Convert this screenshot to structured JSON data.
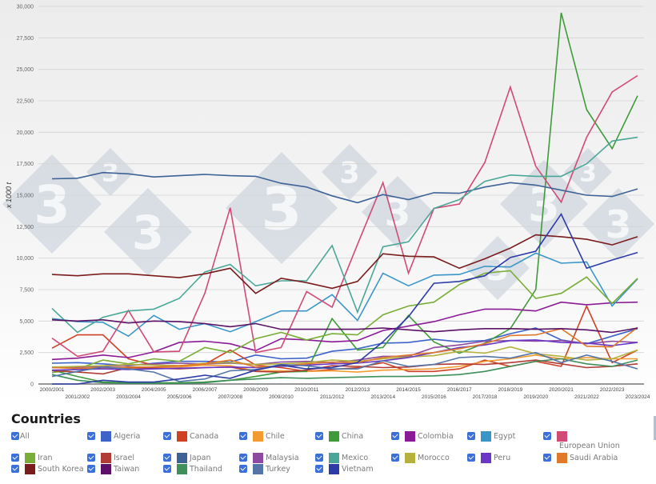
{
  "chart_data": {
    "type": "line",
    "title": "",
    "xlabel": "",
    "ylabel": "x 1000 t",
    "ylim": [
      0,
      30000
    ],
    "yticks": [
      0,
      2500,
      5000,
      7500,
      10000,
      12500,
      15000,
      17500,
      20000,
      22500,
      25000,
      27500,
      30000
    ],
    "ytick_labels": [
      "0",
      "2,500",
      "5,000",
      "7,500",
      "10,000",
      "12,500",
      "15,000",
      "17,500",
      "20,000",
      "22,500",
      "25,000",
      "27,500",
      "30,000"
    ],
    "grid": true,
    "legend_position": "bottom",
    "categories": [
      "2000/2001",
      "2001/2002",
      "2002/2003",
      "2003/2004",
      "2004/2005",
      "2005/2006",
      "2006/2007",
      "2007/2008",
      "2008/2009",
      "2009/2010",
      "2010/2011",
      "2011/2012",
      "2012/2013",
      "2013/2014",
      "2014/2015",
      "2015/2016",
      "2016/2017",
      "2017/2018",
      "2018/2019",
      "2019/2020",
      "2020/2021",
      "2021/2022",
      "2022/2023",
      "2023/2024"
    ],
    "series": [
      {
        "name": "Algeria",
        "color": "#3d63c9",
        "values": [
          1650,
          1700,
          1600,
          1450,
          1650,
          1800,
          1800,
          1750,
          2300,
          2000,
          2050,
          2600,
          2800,
          3250,
          3300,
          3550,
          3350,
          3450,
          4000,
          4450,
          3500,
          3200,
          3800,
          4400
        ]
      },
      {
        "name": "Canada",
        "color": "#cf4124",
        "values": [
          2850,
          3900,
          3900,
          2000,
          1500,
          1450,
          1550,
          2700,
          1500,
          1300,
          1000,
          1150,
          1300,
          1700,
          1000,
          1000,
          1200,
          1900,
          1400,
          1800,
          1400,
          6200,
          1700,
          2700
        ]
      },
      {
        "name": "Chile",
        "color": "#f39a30",
        "values": [
          1300,
          1250,
          1200,
          1250,
          1300,
          1350,
          1500,
          1450,
          1050,
          1050,
          1000,
          1050,
          950,
          1100,
          1150,
          1200,
          1400,
          1800,
          2000,
          2300,
          2000,
          2100,
          2000,
          2000
        ]
      },
      {
        "name": "China",
        "color": "#3f9b3a",
        "values": [
          1100,
          600,
          150,
          100,
          100,
          100,
          150,
          300,
          600,
          950,
          1000,
          5200,
          2700,
          2900,
          5450,
          3350,
          2450,
          3250,
          4400,
          7500,
          29500,
          21800,
          18700,
          22900
        ]
      },
      {
        "name": "Colombia",
        "color": "#8a1a95",
        "values": [
          1950,
          2050,
          2300,
          2100,
          2550,
          3300,
          3400,
          3200,
          2650,
          3600,
          3500,
          3350,
          3450,
          4250,
          4600,
          4950,
          5500,
          5950,
          5950,
          5800,
          6500,
          6300,
          6450,
          6500
        ]
      },
      {
        "name": "Egypt",
        "color": "#3a96c8",
        "values": [
          5200,
          4950,
          4900,
          3800,
          5450,
          4350,
          4800,
          4150,
          4950,
          5800,
          5800,
          7100,
          5050,
          8800,
          7800,
          8650,
          8700,
          9350,
          9300,
          10400,
          9600,
          9700,
          6200,
          8350
        ]
      },
      {
        "name": "European Union",
        "color": "#d14a75",
        "values": [
          3650,
          2200,
          2600,
          5850,
          2550,
          2600,
          7200,
          14000,
          2500,
          2900,
          7350,
          6100,
          11100,
          16000,
          8800,
          13950,
          14300,
          17600,
          23600,
          17300,
          14450,
          19600,
          23200,
          24500
        ]
      },
      {
        "name": "Iran",
        "color": "#78ae35",
        "values": [
          900,
          1200,
          1900,
          1600,
          2000,
          1800,
          2900,
          2500,
          3600,
          4100,
          3500,
          4000,
          3900,
          5500,
          6200,
          6500,
          7900,
          8800,
          9000,
          6800,
          7200,
          8500,
          6400,
          8400
        ]
      },
      {
        "name": "Israel",
        "color": "#b13c35",
        "values": [
          1050,
          950,
          800,
          1300,
          1250,
          1200,
          1300,
          1350,
          1000,
          950,
          1100,
          1450,
          1400,
          1300,
          1350,
          1550,
          1600,
          1550,
          1700,
          1900,
          1600,
          1300,
          1400,
          1600
        ]
      },
      {
        "name": "Japan",
        "color": "#3c6296",
        "values": [
          16300,
          16350,
          16800,
          16700,
          16450,
          16550,
          16650,
          16550,
          16500,
          15950,
          15650,
          14950,
          14400,
          15050,
          14650,
          15200,
          15150,
          15650,
          16000,
          15800,
          15400,
          15000,
          14900,
          15500
        ]
      },
      {
        "name": "Malaysia",
        "color": "#8d4aa0",
        "values": [
          1300,
          1350,
          1400,
          1500,
          1600,
          1650,
          1600,
          1650,
          1550,
          1750,
          1800,
          1700,
          1900,
          2200,
          2200,
          2900,
          3100,
          3400,
          3450,
          3400,
          3450,
          3200,
          3400,
          3300
        ]
      },
      {
        "name": "Mexico",
        "color": "#4aa797",
        "values": [
          6000,
          4100,
          5300,
          5800,
          5950,
          6800,
          8900,
          9500,
          7800,
          8200,
          8200,
          11000,
          5700,
          10900,
          11300,
          13950,
          14650,
          16100,
          16600,
          16500,
          16500,
          17500,
          19300,
          19600
        ]
      },
      {
        "name": "Morocco",
        "color": "#b4b13c",
        "values": [
          1350,
          1400,
          1450,
          1550,
          1500,
          1450,
          1650,
          1700,
          1550,
          1600,
          1700,
          1900,
          1800,
          2000,
          2150,
          2250,
          2600,
          2450,
          2950,
          2400,
          2200,
          1900,
          2000,
          2700
        ]
      },
      {
        "name": "Peru",
        "color": "#6a37c9",
        "values": [
          1100,
          1150,
          1200,
          1150,
          1200,
          1250,
          1300,
          1350,
          1300,
          1400,
          1500,
          1600,
          1650,
          1850,
          2100,
          2500,
          2900,
          3100,
          3450,
          3500,
          3300,
          3250,
          3050,
          3300
        ]
      },
      {
        "name": "Saudi Arabia",
        "color": "#e07a2a",
        "values": [
          1300,
          1250,
          1300,
          1350,
          1350,
          1450,
          1600,
          1900,
          1350,
          1450,
          1600,
          1750,
          1700,
          2100,
          2300,
          2500,
          2800,
          3200,
          3850,
          3900,
          4400,
          3000,
          2950,
          4500
        ]
      },
      {
        "name": "South Korea",
        "color": "#7a1c1c",
        "values": [
          8700,
          8600,
          8750,
          8750,
          8600,
          8450,
          8750,
          9200,
          7200,
          8400,
          8050,
          7600,
          8150,
          10350,
          10150,
          10100,
          9200,
          9950,
          10800,
          11850,
          11700,
          11500,
          11050,
          11700
        ]
      },
      {
        "name": "Taiwan",
        "color": "#5b1166",
        "values": [
          5100,
          5000,
          5100,
          4850,
          5000,
          4950,
          4800,
          4550,
          4800,
          4350,
          4350,
          4350,
          4350,
          4450,
          4300,
          4150,
          4300,
          4400,
          4400,
          4350,
          4400,
          4300,
          4100,
          4450
        ]
      },
      {
        "name": "Thailand",
        "color": "#3e8f5a",
        "values": [
          750,
          300,
          100,
          50,
          50,
          50,
          100,
          300,
          400,
          500,
          450,
          500,
          550,
          600,
          600,
          650,
          750,
          1000,
          1400,
          1800,
          2000,
          1600,
          1400,
          1900
        ]
      },
      {
        "name": "Turkey",
        "color": "#5475a8",
        "values": [
          600,
          1000,
          1350,
          1200,
          950,
          200,
          400,
          1050,
          1150,
          1550,
          1450,
          1200,
          1200,
          1850,
          1400,
          1550,
          2100,
          2200,
          2050,
          2500,
          1700,
          2300,
          1800,
          1200
        ]
      },
      {
        "name": "Vietnam",
        "color": "#2d3ba6",
        "values": [
          0,
          0,
          300,
          150,
          150,
          400,
          700,
          450,
          1100,
          1500,
          1200,
          1300,
          1700,
          3350,
          5350,
          8000,
          8150,
          8600,
          10050,
          10550,
          13500,
          9200,
          9850,
          10450
        ]
      }
    ]
  },
  "legend": {
    "title": "Countries",
    "all_label": "All",
    "items": [
      {
        "label": "Algeria",
        "color": "#3d63c9",
        "checked": true
      },
      {
        "label": "Canada",
        "color": "#cf4124",
        "checked": true
      },
      {
        "label": "Chile",
        "color": "#f39a30",
        "checked": true
      },
      {
        "label": "China",
        "color": "#3f9b3a",
        "checked": true
      },
      {
        "label": "Colombia",
        "color": "#8a1a95",
        "checked": true
      },
      {
        "label": "Egypt",
        "color": "#3a96c8",
        "checked": true
      },
      {
        "label": "European Union",
        "color": "#d14a75",
        "checked": true
      },
      {
        "label": "Iran",
        "color": "#78ae35",
        "checked": true
      },
      {
        "label": "Israel",
        "color": "#b13c35",
        "checked": true
      },
      {
        "label": "Japan",
        "color": "#3c6296",
        "checked": true
      },
      {
        "label": "Malaysia",
        "color": "#8d4aa0",
        "checked": true
      },
      {
        "label": "Mexico",
        "color": "#4aa797",
        "checked": true
      },
      {
        "label": "Morocco",
        "color": "#b4b13c",
        "checked": true
      },
      {
        "label": "Peru",
        "color": "#6a37c9",
        "checked": true
      },
      {
        "label": "Saudi Arabia",
        "color": "#e07a2a",
        "checked": true
      },
      {
        "label": "South Korea",
        "color": "#7a1c1c",
        "checked": true
      },
      {
        "label": "Taiwan",
        "color": "#5b1166",
        "checked": true
      },
      {
        "label": "Thailand",
        "color": "#3e8f5a",
        "checked": true
      },
      {
        "label": "Turkey",
        "color": "#5475a8",
        "checked": true
      },
      {
        "label": "Vietnam",
        "color": "#2d3ba6",
        "checked": true
      }
    ]
  },
  "watermark": {
    "glyph": "3"
  }
}
